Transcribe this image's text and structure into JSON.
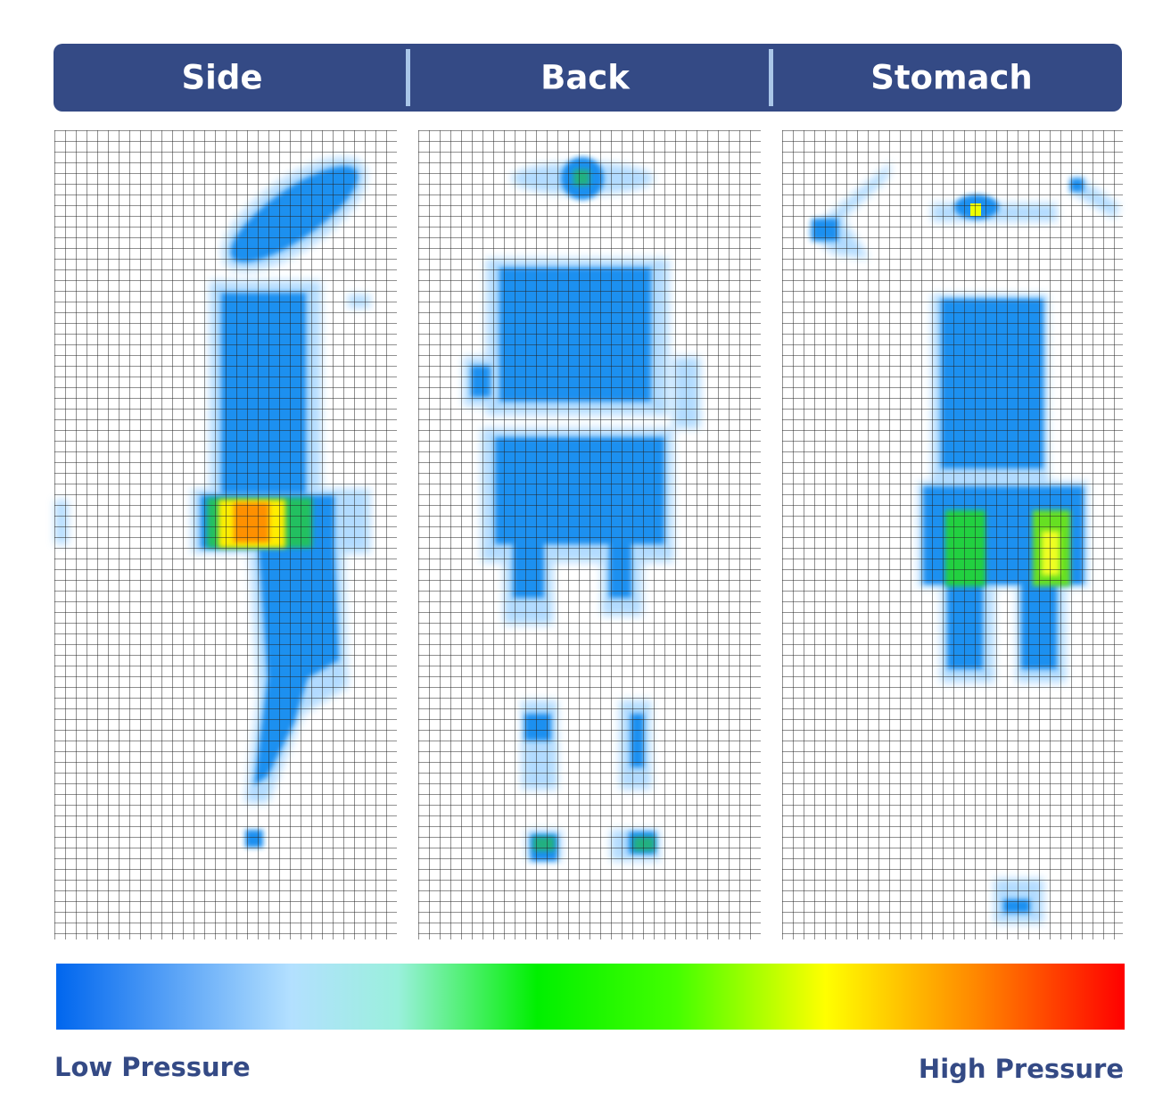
{
  "tabs": [
    "Side",
    "Back",
    "Stomach"
  ],
  "legend": {
    "low": "Low Pressure",
    "high": "High Pressure"
  }
}
